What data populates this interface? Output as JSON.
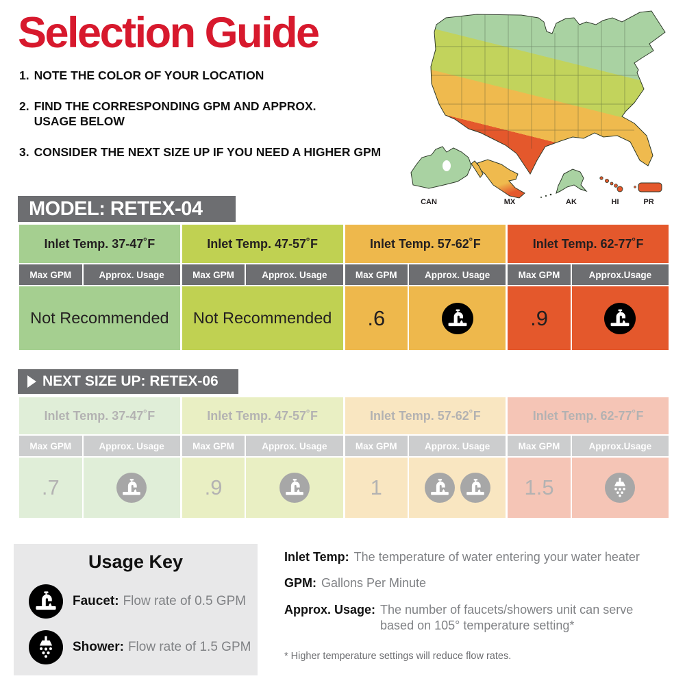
{
  "header": {
    "title": "Selection Guide",
    "title_color": "#d7192d"
  },
  "steps": [
    {
      "num": "1.",
      "text": "NOTE THE COLOR OF YOUR LOCATION"
    },
    {
      "num": "2.",
      "text": "FIND THE CORRESPONDING GPM AND APPROX.\nUSAGE BELOW"
    },
    {
      "num": "3.",
      "text": "CONSIDER THE NEXT SIZE UP IF YOU NEED A HIGHER GPM"
    }
  ],
  "map": {
    "labels": [
      "CAN",
      "MX",
      "AK",
      "HI",
      "PR"
    ],
    "zone_colors": [
      "#a9d2a2",
      "#c2d35c",
      "#efba4e",
      "#e4582c"
    ]
  },
  "model_table": {
    "title": "MODEL: RETEX-04",
    "columns": [
      {
        "header": "Inlet Temp. 37-47˚F",
        "sub_gpm": "Max GPM",
        "sub_usage": "Approx. Usage",
        "value": "Not Recommended"
      },
      {
        "header": "Inlet Temp. 47-57˚F",
        "sub_gpm": "Max GPM",
        "sub_usage": "Approx. Usage",
        "value": "Not Recommended"
      },
      {
        "header": "Inlet Temp. 57-62˚F",
        "sub_gpm": "Max GPM",
        "sub_usage": "Approx. Usage",
        "max_gpm": ".6",
        "icons": [
          "faucet"
        ]
      },
      {
        "header": "Inlet Temp. 62-77˚F",
        "sub_gpm": "Max GPM",
        "sub_usage": "Approx.Usage",
        "max_gpm": ".9",
        "icons": [
          "faucet"
        ]
      }
    ]
  },
  "next_table": {
    "title": "NEXT SIZE UP: RETEX-06",
    "columns": [
      {
        "header": "Inlet Temp. 37-47˚F",
        "sub_gpm": "Max GPM",
        "sub_usage": "Approx. Usage",
        "max_gpm": ".7",
        "icons": [
          "faucet"
        ]
      },
      {
        "header": "Inlet Temp. 47-57˚F",
        "sub_gpm": "Max GPM",
        "sub_usage": "Approx. Usage",
        "max_gpm": ".9",
        "icons": [
          "faucet"
        ]
      },
      {
        "header": "Inlet Temp. 57-62˚F",
        "sub_gpm": "Max GPM",
        "sub_usage": "Approx. Usage",
        "max_gpm": "1",
        "icons": [
          "faucet",
          "faucet"
        ]
      },
      {
        "header": "Inlet Temp. 62-77˚F",
        "sub_gpm": "Max GPM",
        "sub_usage": "Approx.Usage",
        "max_gpm": "1.5",
        "icons": [
          "shower"
        ]
      }
    ]
  },
  "usage_key": {
    "title": "Usage Key",
    "items": [
      {
        "label": "Faucet:",
        "text": "Flow rate of 0.5 GPM",
        "icons": [
          "faucet"
        ]
      },
      {
        "label": "Shower:",
        "text": "Flow rate of 1.5 GPM",
        "icons": [
          "shower"
        ]
      }
    ]
  },
  "definitions": [
    {
      "term": "Inlet Temp:",
      "text": "The temperature of water entering your water heater"
    },
    {
      "term": "GPM:",
      "text": "Gallons Per Minute"
    },
    {
      "term": "Approx. Usage:",
      "text": "The number of faucets/showers unit can serve based on 105° temperature setting*"
    }
  ],
  "footnote": "* Higher temperature settings will reduce flow rates."
}
